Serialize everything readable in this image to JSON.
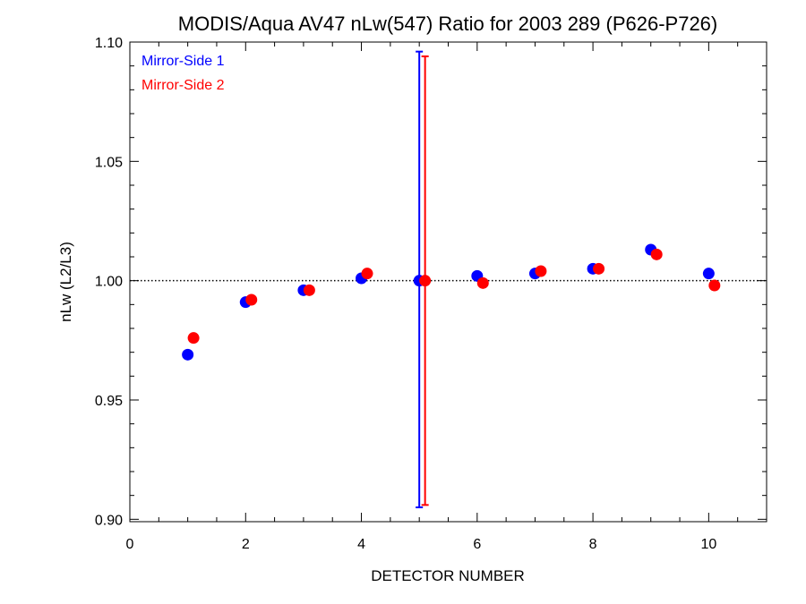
{
  "chart_data": {
    "type": "scatter",
    "title": "MODIS/Aqua AV47 nLw(547) Ratio for 2003 289 (P626-P726)",
    "xlabel": "DETECTOR NUMBER",
    "ylabel": "nLw (L2/L3)",
    "xlim": [
      0,
      11
    ],
    "ylim": [
      0.899,
      1.1
    ],
    "x_ticks": [
      0,
      2,
      4,
      6,
      8,
      10
    ],
    "x_tick_labels": [
      "0",
      "2",
      "4",
      "6",
      "8",
      "10"
    ],
    "y_ticks": [
      0.9,
      0.95,
      1.0,
      1.05,
      1.1
    ],
    "y_tick_labels": [
      "0.90",
      "0.95",
      "1.00",
      "1.05",
      "1.10"
    ],
    "reference_line": 1.0,
    "legend_position": "top-left",
    "series": [
      {
        "name": "Mirror-Side 1",
        "color": "#0000ff",
        "x": [
          1,
          2,
          3,
          4,
          5,
          6,
          7,
          8,
          9,
          10
        ],
        "y": [
          0.969,
          0.991,
          0.996,
          1.001,
          1.0,
          1.002,
          1.003,
          1.005,
          1.013,
          1.003
        ]
      },
      {
        "name": "Mirror-Side 2",
        "color": "#ff0000",
        "x": [
          1.1,
          2.1,
          3.1,
          4.1,
          5.1,
          6.1,
          7.1,
          8.1,
          9.1,
          10.1
        ],
        "y": [
          0.976,
          0.992,
          0.996,
          1.003,
          1.0,
          0.999,
          1.004,
          1.005,
          1.011,
          0.998
        ]
      }
    ],
    "error_bars": [
      {
        "series": "Mirror-Side 1",
        "x": 5.0,
        "low": 0.905,
        "high": 1.096,
        "color": "#0000ff"
      },
      {
        "series": "Mirror-Side 2",
        "x": 5.1,
        "low": 0.906,
        "high": 1.094,
        "color": "#ff0000"
      }
    ]
  }
}
